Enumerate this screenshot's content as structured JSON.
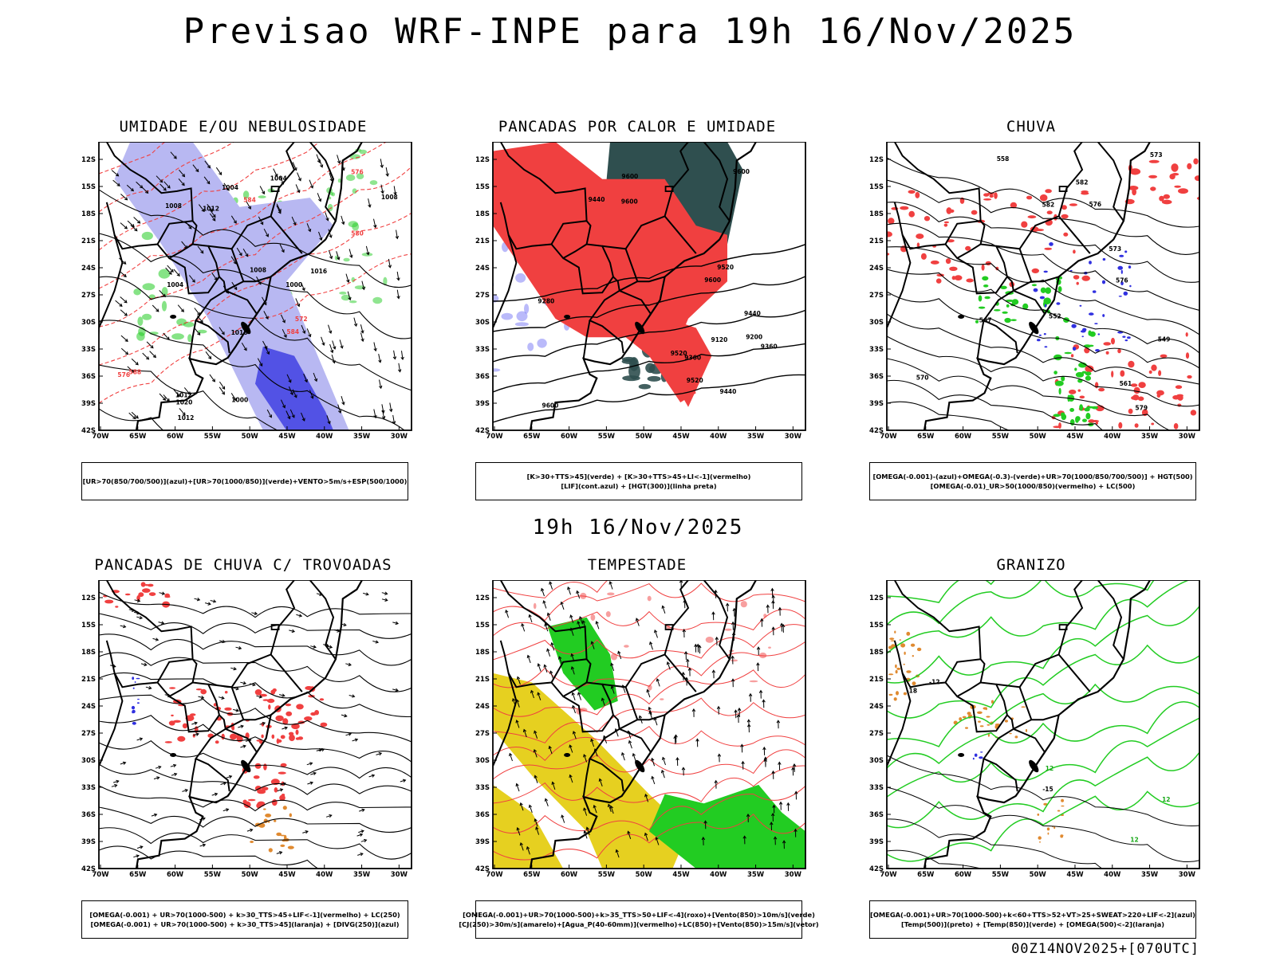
{
  "header": {
    "title": "Previsao WRF-INPE  para 19h 16/Nov/2025"
  },
  "mid_label": "19h 16/Nov/2025",
  "footer": "00Z14NOV2025+[070UTC]",
  "axes": {
    "lat_labels": [
      "12S",
      "15S",
      "18S",
      "21S",
      "24S",
      "27S",
      "30S",
      "33S",
      "36S",
      "39S",
      "42S"
    ],
    "lon_labels": [
      "70W",
      "65W",
      "60W",
      "55W",
      "50W",
      "45W",
      "40W",
      "35W",
      "30W"
    ]
  },
  "colors": {
    "humidity_blue": "#b8b8f2",
    "deep_blue": "#3030e0",
    "green": "#22cc22",
    "red": "#f04040",
    "dark_teal": "#2f4f4f",
    "yellow": "#e6d020",
    "orange": "#e08a30"
  },
  "panels": [
    {
      "title": "UMIDADE E/OU NEBULOSIDADE",
      "legend": [
        "[UR>70(850/700/500)](azul)+[UR>70(1000/850)](verde)+VENTO>5m/s+ESP(500/1000)"
      ],
      "labels": [
        "1008",
        "1012",
        "1016",
        "1004",
        "1000",
        "1008",
        "1012",
        "1004",
        "1008",
        "1012",
        "1004",
        "1016",
        "1020",
        "1000",
        "576",
        "572",
        "576",
        "584",
        "580",
        "584",
        "588"
      ]
    },
    {
      "title": "PANCADAS POR CALOR E UMIDADE",
      "legend": [
        "[K>30+TTS>45](verde) + [K>30+TTS>45+LI<-1](vermelho)",
        "[LIF](cont.azul) + [HGT(300)](linha preta)"
      ],
      "labels": [
        "9600",
        "9600",
        "9600",
        "9600",
        "9520",
        "9600",
        "9440",
        "9520",
        "9520",
        "9440",
        "9360",
        "9280",
        "9200",
        "9120",
        "9440",
        "9360"
      ]
    },
    {
      "title": "CHUVA",
      "legend": [
        "[OMEGA(-0.001)-(azul)+OMEGA(-0.3)-(verde)+UR>70(1000/850/700/500)] + HGT(500)",
        "[OMEGA(-0.01)_UR>50(1000/850)(vermelho) + LC(500)"
      ],
      "labels": [
        "582",
        "576",
        "573",
        "570",
        "567",
        "561",
        "558",
        "552",
        "549",
        "579",
        "576",
        "582",
        "573"
      ]
    },
    {
      "title": "PANCADAS DE CHUVA C/ TROVOADAS",
      "legend": [
        "[OMEGA(-0.001) + UR>70(1000-500) + k>30_TTS>45+LIF<-1](vermelho) + LC(250)",
        "[OMEGA(-0.001) + UR>70(1000-500) + k>30_TTS>45](laranja) + [DIVG(250)](azul)"
      ],
      "labels": []
    },
    {
      "title": "TEMPESTADE",
      "legend": [
        "[OMEGA(-0.001)+UR>70(1000-500)+k>35_TTS>50+LIF<-4](roxo)+[Vento(850)>10m/s](verde)",
        "[CJ(250)>30m/s](amarelo)+[Agua_P(40-60mm)](vermelho)+LC(850)+[Vento(850)>15m/s](vetor)"
      ],
      "labels": []
    },
    {
      "title": "GRANIZO",
      "legend": [
        "[OMEGA(-0.001)+UR>70(1000-500)+k<60+TTS>52+VT>25+SWEAT>220+LIF<-2](azul)",
        "[Temp(500)](preto) + [Temp(850)](verde) + [OMEGA(500)<-2](laranja)"
      ],
      "labels": [
        "-12",
        "-15",
        "-18",
        "12",
        "12",
        "12"
      ]
    }
  ]
}
